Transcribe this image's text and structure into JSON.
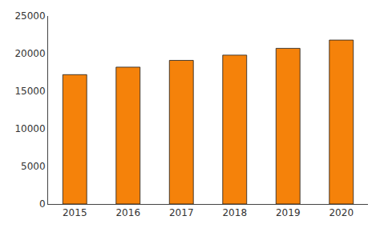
{
  "chart_data": {
    "type": "bar",
    "categories": [
      "2015",
      "2016",
      "2017",
      "2018",
      "2019",
      "2020"
    ],
    "values": [
      17200,
      18200,
      19100,
      19800,
      20700,
      21800
    ],
    "color": "#F5820A",
    "ylim": [
      0,
      25000
    ],
    "yticks": [
      0,
      5000,
      10000,
      15000,
      20000,
      25000
    ],
    "grid": false
  }
}
